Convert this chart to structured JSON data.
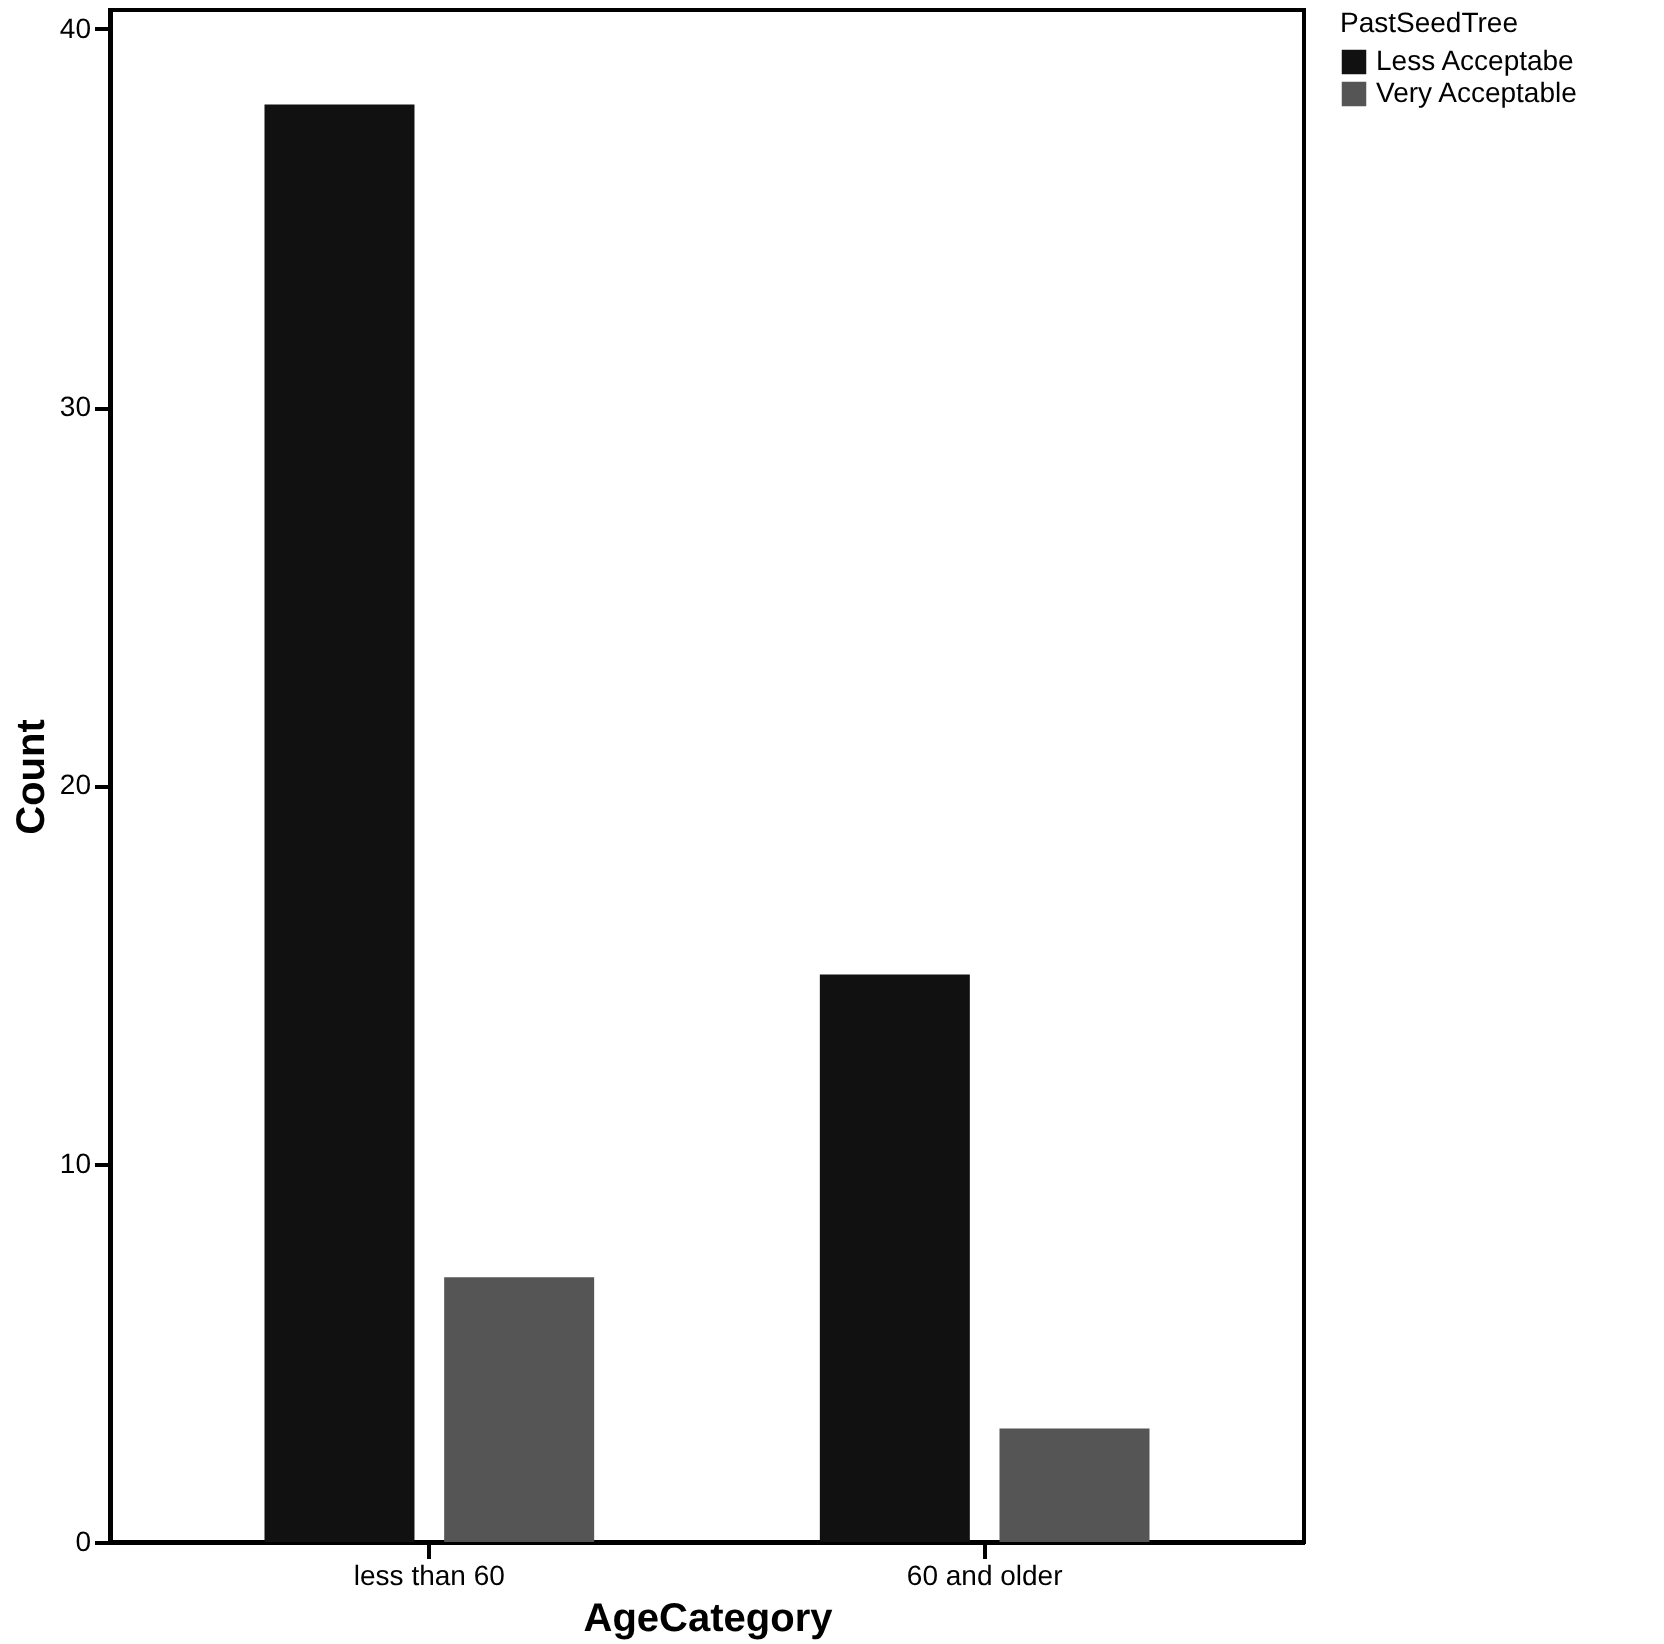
{
  "chart_data": {
    "type": "bar",
    "xlabel": "AgeCategory",
    "ylabel": "Count",
    "legend_title": "PastSeedTree",
    "legend": "top right",
    "grid": false,
    "categories": [
      "less than 60",
      "60 and older"
    ],
    "series": [
      {
        "name": "Less Acceptabe",
        "color": "#111111",
        "values": [
          38,
          15
        ]
      },
      {
        "name": "Very Acceptable",
        "color": "#555555",
        "values": [
          7,
          3
        ]
      }
    ],
    "ylim": [
      0,
      40.5
    ],
    "yticks": [
      0,
      10,
      20,
      30,
      40
    ]
  }
}
